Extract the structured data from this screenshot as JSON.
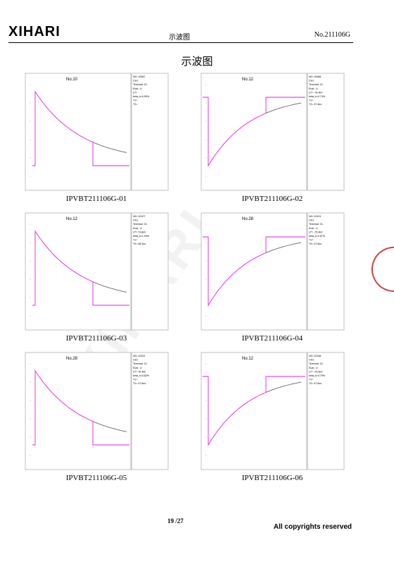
{
  "header": {
    "logo": "XIHARI",
    "title": "示波图",
    "doc_no": "No.211106G"
  },
  "page_title": "示波图",
  "watermark": "XIHARI",
  "footer": {
    "page": "19 /27",
    "copyright": "All copyrights reserved"
  },
  "colors": {
    "trace_pink": "#e11ee1",
    "trace_gray": "#666666",
    "frame": "#999999"
  },
  "panels": [
    {
      "caption": "IPVBT211106G-01",
      "plot_title": "No.10",
      "kind": "decay",
      "info": [
        "NO.:10087",
        "CH1",
        "Terminal: X1",
        "Eval.: U",
        "U*= ",
        "beta_k=0.50%",
        "T1=",
        "T2="
      ]
    },
    {
      "caption": "IPVBT211106G-02",
      "plot_title": "No.12",
      "kind": "rise",
      "info": [
        "NO.:10088",
        "CH1",
        "Terminal: X1",
        "Eval.: U",
        "U*= -75.4kV",
        "beta_k=0.74%",
        "T1=",
        "T2= 47.6us"
      ]
    },
    {
      "caption": "IPVBT211106G-03",
      "plot_title": "No.12",
      "kind": "decay",
      "info": [
        "NO.:10107",
        "CH1",
        "Terminal: X1",
        "Eval.: U",
        "U*= 74.8kV",
        "beta_k=1.03%",
        "T1=",
        "T2= 48.3us"
      ]
    },
    {
      "caption": "IPVBT211106G-04",
      "plot_title": "No.28",
      "kind": "rise",
      "info": [
        "NO.:10101",
        "CH1",
        "Terminal: X1",
        "Eval.: U",
        "U*= -75.9kV",
        "beta_k=0.87%",
        "T1=",
        "T2= 47.6us"
      ]
    },
    {
      "caption": "IPVBT211106G-05",
      "plot_title": "No.28",
      "kind": "decay",
      "info": [
        "NO.:10102",
        "CH1",
        "Terminal: X1",
        "Eval.: U",
        "U*= 75.4kV",
        "beta_k=0.82%",
        "T1=",
        "T2= 47.6us"
      ]
    },
    {
      "caption": "IPVBT211106G-06",
      "plot_title": "No.12",
      "kind": "rise",
      "info": [
        "NO.:10148",
        "CH1",
        "Terminal: X1",
        "Eval.: U",
        "U*= -75.0kV",
        "beta_k=0.79%",
        "T1=",
        "T2= 47.6us"
      ]
    }
  ]
}
